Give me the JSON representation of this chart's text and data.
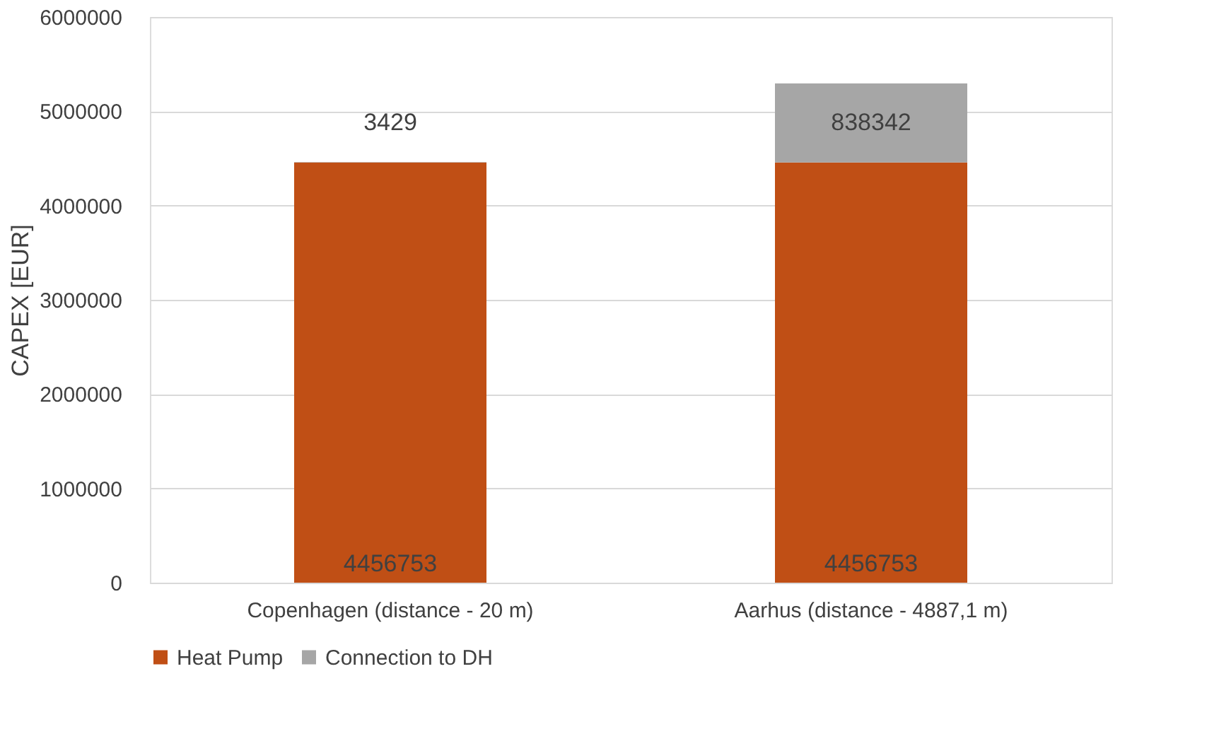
{
  "chart_data": {
    "type": "bar",
    "stacked": true,
    "ylabel": "CAPEX [EUR]",
    "categories": [
      "Copenhagen (distance - 20 m)",
      "Aarhus (distance - 4887,1 m)"
    ],
    "series": [
      {
        "name": "Heat Pump",
        "color": "#c04f15",
        "values": [
          4456753,
          4456753
        ]
      },
      {
        "name": "Connection to DH",
        "color": "#a6a6a6",
        "values": [
          3429,
          838342
        ]
      }
    ],
    "ylim": [
      0,
      6000000
    ],
    "yticks": [
      0,
      1000000,
      2000000,
      3000000,
      4000000,
      5000000,
      6000000
    ],
    "grid": "y",
    "legend": "bottom",
    "data_labels": true
  }
}
